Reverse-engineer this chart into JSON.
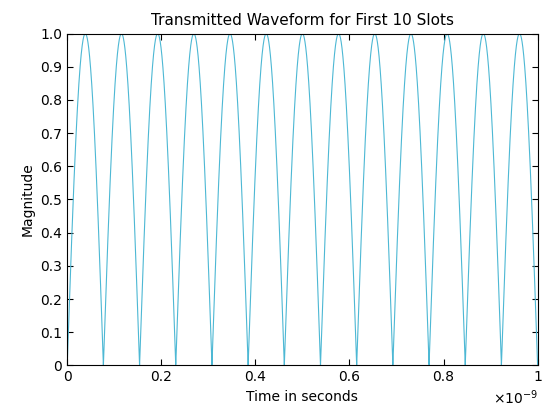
{
  "title": "Transmitted Waveform for First 10 Slots",
  "xlabel": "Time in seconds",
  "ylabel": "Magnitude",
  "xlim": [
    0,
    1e-09
  ],
  "ylim": [
    0,
    1
  ],
  "line_color": "#4db8d4",
  "line_width": 0.8,
  "frequency": 13000000000.0,
  "num_points": 10000,
  "xticks": [
    0,
    2e-10,
    4e-10,
    6e-10,
    8e-10,
    1e-09
  ],
  "xtick_labels": [
    "0",
    "0.2",
    "0.4",
    "0.6",
    "0.8",
    "1"
  ],
  "yticks": [
    0,
    0.1,
    0.2,
    0.3,
    0.4,
    0.5,
    0.6,
    0.7,
    0.8,
    0.9,
    1.0
  ],
  "background_color": "#ffffff",
  "title_fontsize": 11,
  "label_fontsize": 10,
  "tick_fontsize": 10,
  "figwidth": 5.6,
  "figheight": 4.2,
  "dpi": 100
}
